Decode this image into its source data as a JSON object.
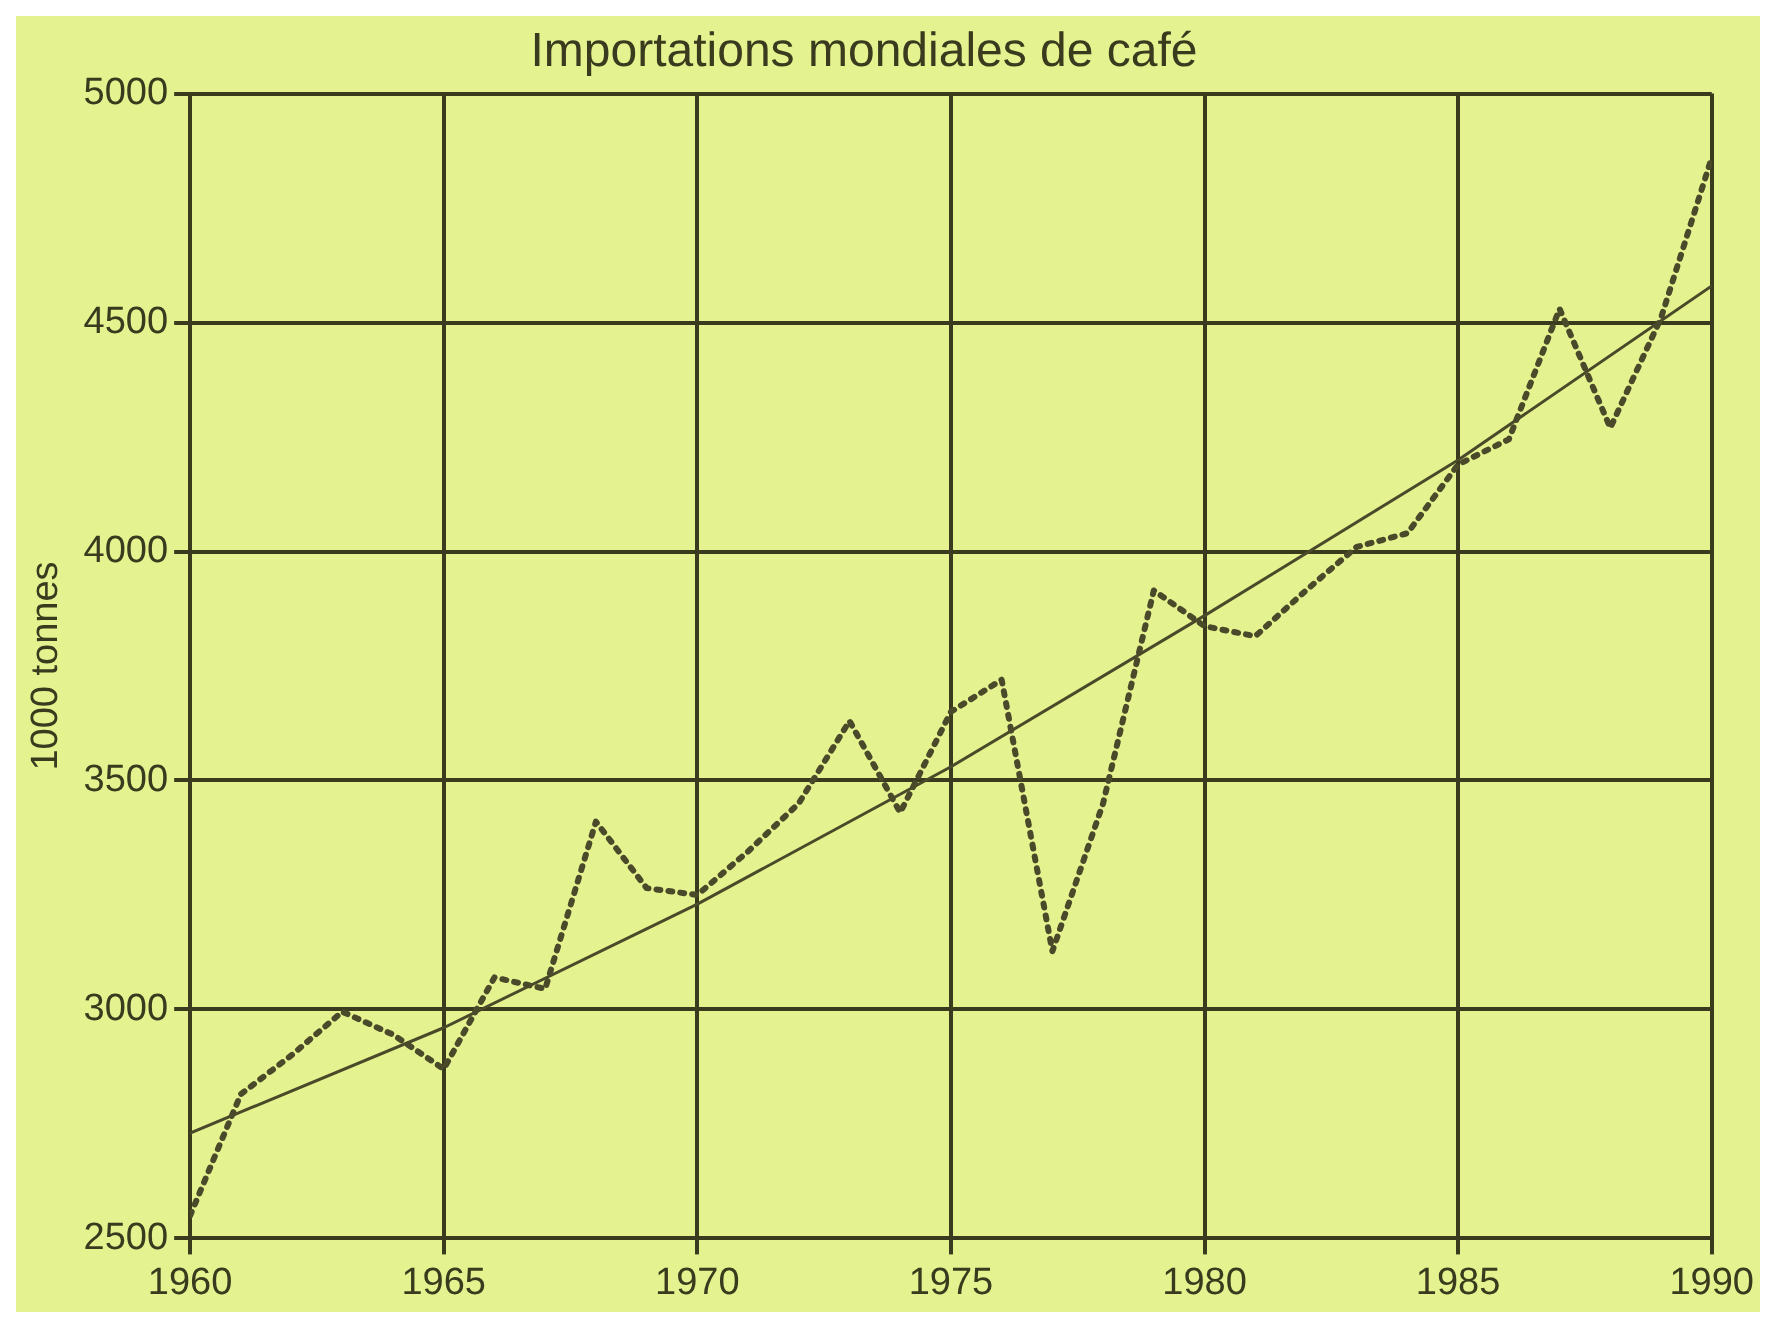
{
  "chart_data": {
    "type": "line",
    "title": "Importations mondiales de café",
    "ylabel": "1000 tonnes",
    "xlim": [
      1960,
      1990
    ],
    "xticks": [
      1960,
      1965,
      1970,
      1975,
      1980,
      1985,
      1990
    ],
    "ylim": [
      2500,
      5000
    ],
    "yticks": [
      2500,
      3000,
      3500,
      4000,
      4500,
      5000
    ],
    "grid": true,
    "legend": false,
    "marker": "none",
    "series": [
      {
        "color": "#4a4a2a",
        "line_style": "dotted",
        "x": [
          1960,
          1961,
          1962,
          1963,
          1964,
          1965,
          1966,
          1967,
          1968,
          1969,
          1970,
          1971,
          1972,
          1973,
          1974,
          1975,
          1976,
          1977,
          1978,
          1979,
          1980,
          1981,
          1982,
          1983,
          1984,
          1985,
          1986,
          1987,
          1988,
          1989,
          1990
        ],
        "values": [
          2550,
          2815,
          2900,
          2995,
          2945,
          2870,
          3070,
          3045,
          3410,
          3265,
          3250,
          3345,
          3450,
          3630,
          3430,
          3650,
          3720,
          3127,
          3450,
          3915,
          3837,
          3815,
          3915,
          4010,
          4040,
          4190,
          4245,
          4530,
          4270,
          4510,
          4860
        ]
      },
      {
        "type": "line",
        "color": "#4a4a2a",
        "line_style": "solid",
        "x": [
          1960,
          1965,
          1970,
          1975,
          1980,
          1985,
          1990
        ],
        "values": [
          2730,
          2960,
          3230,
          3530,
          3860,
          4200,
          4580
        ]
      }
    ]
  }
}
